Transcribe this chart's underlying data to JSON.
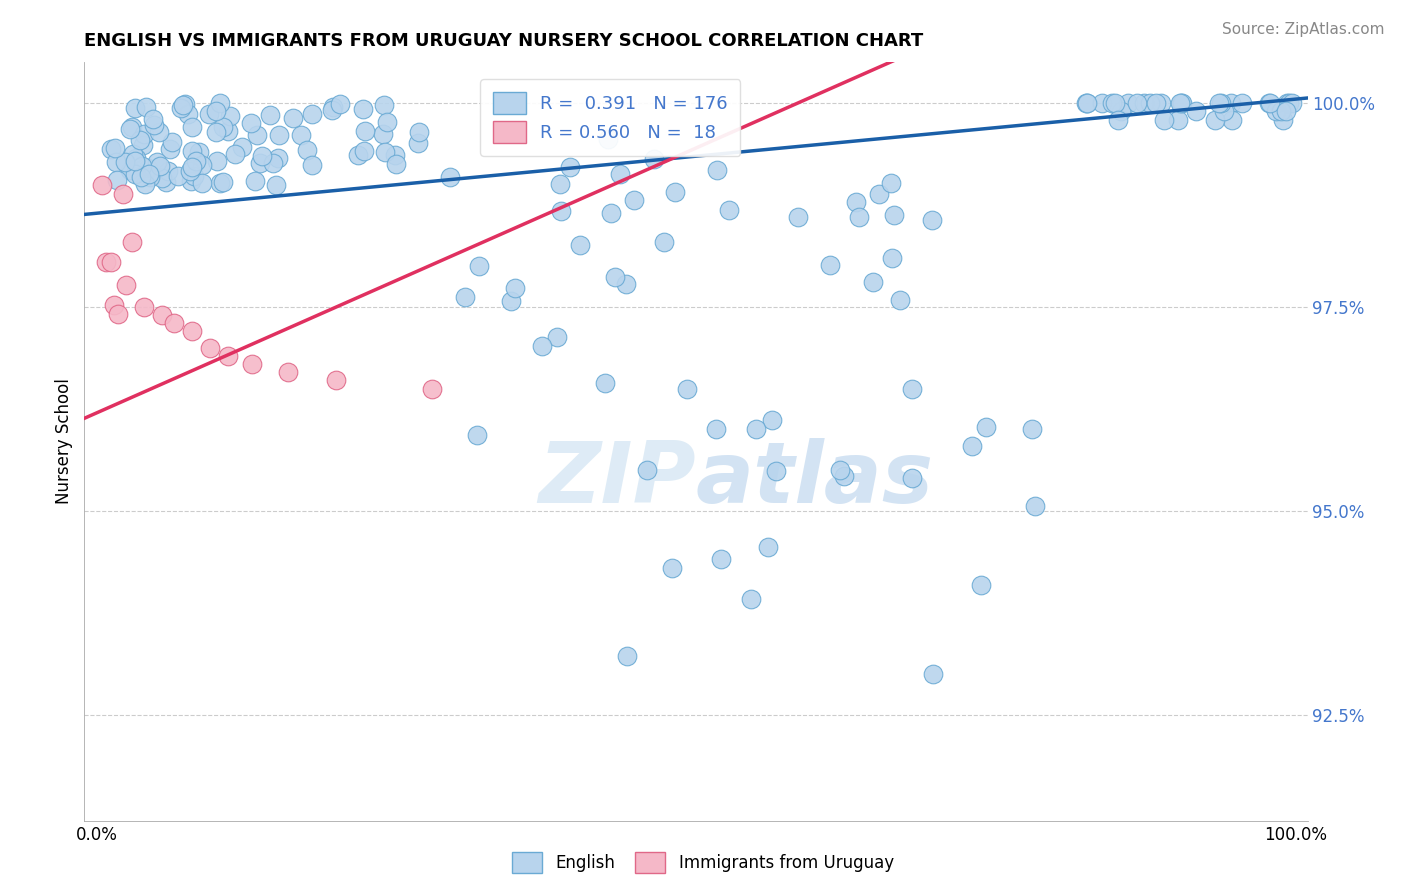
{
  "title": "ENGLISH VS IMMIGRANTS FROM URUGUAY NURSERY SCHOOL CORRELATION CHART",
  "source": "Source: ZipAtlas.com",
  "ylabel": "Nursery School",
  "ymin": 0.912,
  "ymax": 1.005,
  "xmin": -0.01,
  "xmax": 1.01,
  "legend_R_english": "0.391",
  "legend_N_english": "176",
  "legend_R_uruguay": "0.560",
  "legend_N_uruguay": "18",
  "english_color": "#b8d4ed",
  "english_edge_color": "#6aaad4",
  "english_line_color": "#1a5fa8",
  "uruguay_color": "#f5b8c8",
  "uruguay_edge_color": "#e06888",
  "uruguay_line_color": "#e03060",
  "watermark_color": "#ddeeff",
  "grid_color": "#cccccc",
  "ytick_color": "#4477cc",
  "title_fontsize": 13,
  "source_fontsize": 11,
  "tick_fontsize": 12,
  "legend_fontsize": 13
}
